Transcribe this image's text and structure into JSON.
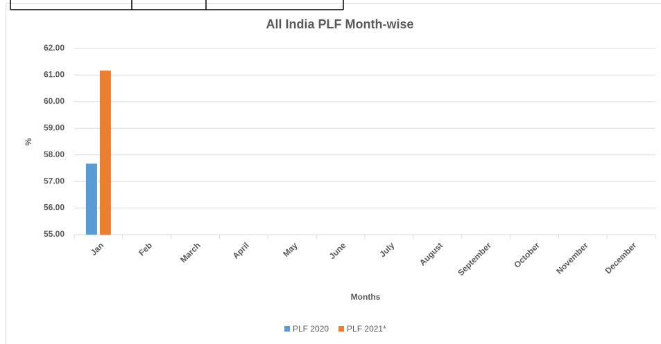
{
  "chart_data": {
    "type": "bar",
    "title": "All India PLF Month-wise",
    "x_label": "Months",
    "y_label": "%",
    "categories": [
      "Jan",
      "Feb",
      "March",
      "April",
      "May",
      "June",
      "July",
      "August",
      "September",
      "October",
      "November",
      "December"
    ],
    "series": [
      {
        "name": "PLF 2020",
        "color": "#5b9bd5",
        "values": [
          57.67,
          null,
          null,
          null,
          null,
          null,
          null,
          null,
          null,
          null,
          null,
          null
        ]
      },
      {
        "name": "PLF 2021*",
        "color": "#ed7d31",
        "values": [
          61.17,
          null,
          null,
          null,
          null,
          null,
          null,
          null,
          null,
          null,
          null,
          null
        ]
      }
    ],
    "ylim": [
      55,
      62
    ],
    "yticks": [
      {
        "value": 55,
        "label": "55.00"
      },
      {
        "value": 56,
        "label": "56.00"
      },
      {
        "value": 57,
        "label": "57.00"
      },
      {
        "value": 58,
        "label": "58.00"
      },
      {
        "value": 59,
        "label": "59.00"
      },
      {
        "value": 60,
        "label": "60.00"
      },
      {
        "value": 61,
        "label": "61.00"
      },
      {
        "value": 62,
        "label": "62.00"
      }
    ],
    "grid": true,
    "legend": "bottom"
  }
}
